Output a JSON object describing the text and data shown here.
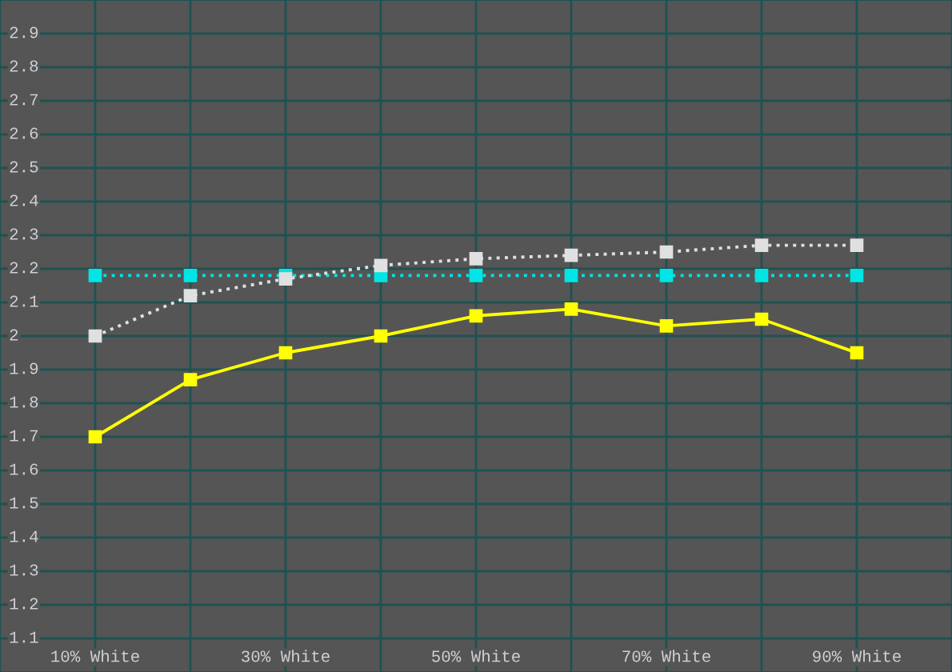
{
  "chart_data": {
    "type": "line",
    "x": [
      10,
      20,
      30,
      40,
      50,
      60,
      70,
      80,
      90
    ],
    "series": [
      {
        "color": "#ffff00",
        "values": [
          1.7,
          1.87,
          1.95,
          2.0,
          2.06,
          2.08,
          2.03,
          2.05,
          1.95
        ],
        "line_style": "solid",
        "marker": "square"
      },
      {
        "color": "#e0e0e0",
        "values": [
          2.0,
          2.12,
          2.17,
          2.21,
          2.23,
          2.24,
          2.25,
          2.27,
          2.27
        ],
        "line_style": "dotted",
        "marker": "square"
      },
      {
        "color": "#00e5e5",
        "values": [
          2.18,
          2.18,
          2.18,
          2.18,
          2.18,
          2.18,
          2.18,
          2.18,
          2.18
        ],
        "line_style": "dotted",
        "marker": "square"
      }
    ],
    "xlim": [
      0,
      100
    ],
    "xticks": [
      {
        "value": 10,
        "label": "10% White"
      },
      {
        "value": 20,
        "label": null
      },
      {
        "value": 30,
        "label": "30% White"
      },
      {
        "value": 40,
        "label": null
      },
      {
        "value": 50,
        "label": "50% White"
      },
      {
        "value": 60,
        "label": null
      },
      {
        "value": 70,
        "label": "70% White"
      },
      {
        "value": 80,
        "label": null
      },
      {
        "value": 90,
        "label": "90% White"
      }
    ],
    "ylim": [
      1,
      3
    ],
    "yticks": [
      1.1,
      1.2,
      1.3,
      1.4,
      1.5,
      1.6,
      1.7,
      1.8,
      1.9,
      2,
      2.1,
      2.2,
      2.3,
      2.4,
      2.5,
      2.6,
      2.7,
      2.8,
      2.9
    ],
    "grid": true
  }
}
